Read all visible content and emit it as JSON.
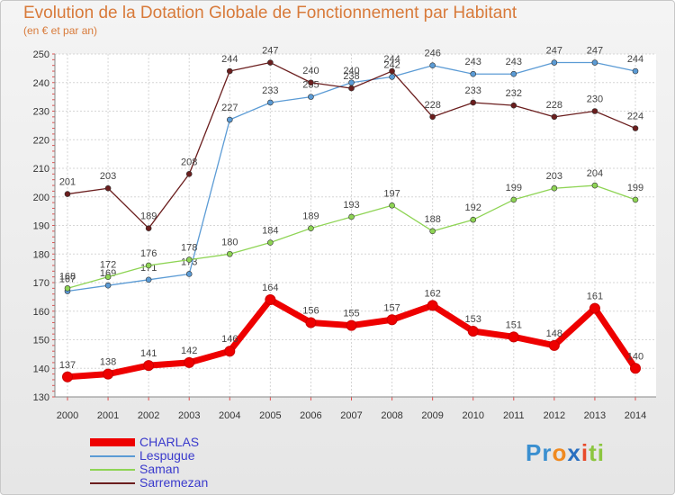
{
  "chart_data": {
    "type": "line",
    "title": "Evolution de la Dotation Globale de Fonctionnement par Habitant",
    "subtitle": "(en € et par an)",
    "xlabel": "",
    "ylabel": "",
    "categories": [
      "2000",
      "2001",
      "2002",
      "2003",
      "2004",
      "2005",
      "2006",
      "2007",
      "2008",
      "2009",
      "2010",
      "2011",
      "2012",
      "2013",
      "2014"
    ],
    "ylim": [
      130,
      250
    ],
    "yticks": [
      130,
      140,
      150,
      160,
      170,
      180,
      190,
      200,
      210,
      220,
      230,
      240,
      250
    ],
    "grid": true,
    "series": [
      {
        "name": "CHARLAS",
        "color": "#ee0000",
        "values": [
          137,
          138,
          141,
          142,
          146,
          164,
          156,
          155,
          157,
          162,
          153,
          151,
          148,
          161,
          140
        ]
      },
      {
        "name": "Lespugue",
        "color": "#5b9bd5",
        "values": [
          167,
          169,
          171,
          173,
          227,
          233,
          235,
          240,
          242,
          246,
          243,
          243,
          247,
          247,
          244
        ]
      },
      {
        "name": "Saman",
        "color": "#8ed454",
        "values": [
          168,
          172,
          176,
          178,
          180,
          184,
          189,
          193,
          197,
          188,
          192,
          199,
          203,
          204,
          199
        ]
      },
      {
        "name": "Sarremezan",
        "color": "#6b1e1e",
        "values": [
          201,
          203,
          189,
          208,
          244,
          247,
          240,
          238,
          244,
          228,
          233,
          232,
          228,
          230,
          224
        ]
      }
    ],
    "legend_position": "bottom-left"
  },
  "logo": {
    "parts": [
      "Pr",
      "o",
      "x",
      "i",
      "ti"
    ],
    "colors": [
      "#3a8fd0",
      "#f08a20",
      "#2a6fc0",
      "#e84a2a",
      "#8cc63f"
    ]
  }
}
